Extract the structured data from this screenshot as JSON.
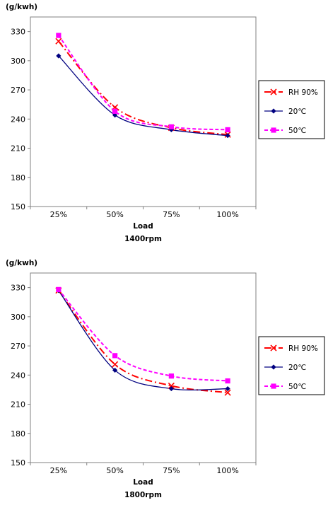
{
  "chart_data": [
    {
      "type": "line",
      "ylabel": "(g/kwh)",
      "xlabel": "Load",
      "caption": "1400rpm",
      "categories": [
        "25%",
        "50%",
        "75%",
        "100%"
      ],
      "ylim": [
        150,
        345
      ],
      "yticks": [
        150,
        180,
        210,
        240,
        270,
        300,
        330
      ],
      "grid": false,
      "legend": "right",
      "series": [
        {
          "name": "RH 90%",
          "values": [
            320,
            252,
            231,
            224
          ],
          "color": "#ff0000",
          "marker": "x",
          "dash": "10,4,2,4"
        },
        {
          "name": "20℃",
          "values": [
            305,
            244,
            229,
            223
          ],
          "color": "#000080",
          "marker": "diamond",
          "dash": ""
        },
        {
          "name": "50℃",
          "values": [
            326,
            248,
            232,
            229
          ],
          "color": "#ff00ff",
          "marker": "square",
          "dash": "5,3"
        }
      ]
    },
    {
      "type": "line",
      "ylabel": "(g/kwh)",
      "xlabel": "Load",
      "caption": "1800rpm",
      "categories": [
        "25%",
        "50%",
        "75%",
        "100%"
      ],
      "ylim": [
        150,
        345
      ],
      "yticks": [
        150,
        180,
        210,
        240,
        270,
        300,
        330
      ],
      "grid": false,
      "legend": "right",
      "series": [
        {
          "name": "RH 90%",
          "values": [
            327,
            251,
            229,
            222
          ],
          "color": "#ff0000",
          "marker": "x",
          "dash": "10,4,2,4"
        },
        {
          "name": "20℃",
          "values": [
            327,
            245,
            226,
            226
          ],
          "color": "#000080",
          "marker": "diamond",
          "dash": ""
        },
        {
          "name": "50℃",
          "values": [
            328,
            260,
            239,
            234
          ],
          "color": "#ff00ff",
          "marker": "square",
          "dash": "5,3"
        }
      ]
    }
  ]
}
